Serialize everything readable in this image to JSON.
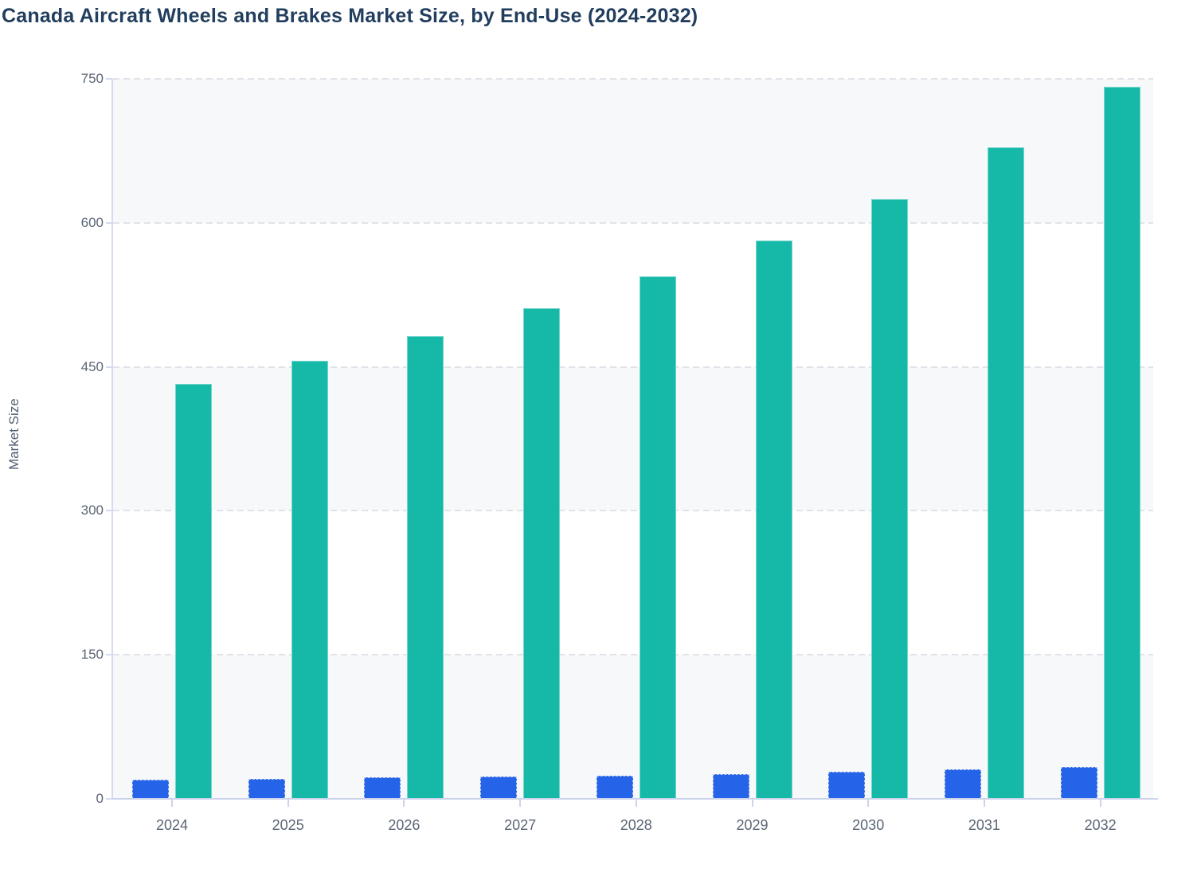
{
  "title": "Canada Aircraft Wheels and Brakes Market Size, by End-Use (2024-2032)",
  "chart_data": {
    "type": "bar",
    "title": "Canada Aircraft Wheels and Brakes Market Size, by End-Use (2024-2032)",
    "categories": [
      "2024",
      "2025",
      "2026",
      "2027",
      "2028",
      "2029",
      "2030",
      "2031",
      "2032"
    ],
    "series": [
      {
        "name": "blue-series",
        "color": "#2563e8",
        "values": [
          20,
          21,
          22,
          23,
          24,
          26,
          28,
          31,
          33
        ]
      },
      {
        "name": "teal-series",
        "color": "#16b8a8",
        "values": [
          432,
          456,
          482,
          511,
          544,
          582,
          625,
          679,
          742
        ]
      }
    ],
    "xlabel": "",
    "ylabel": "Market Size",
    "ylim": [
      0,
      750
    ],
    "yticks": [
      0,
      150,
      300,
      450,
      600,
      750
    ],
    "grid": "horizontal-dashed",
    "legend": "none",
    "bar_layout": "grouped"
  },
  "colors": {
    "title_text": "#223e5e",
    "tick_text": "#5b6676",
    "gridline": "#e1e3e8",
    "axis_line": "#ccd4ec",
    "band_fill": "#f7f8fa",
    "background": "#ffffff"
  }
}
